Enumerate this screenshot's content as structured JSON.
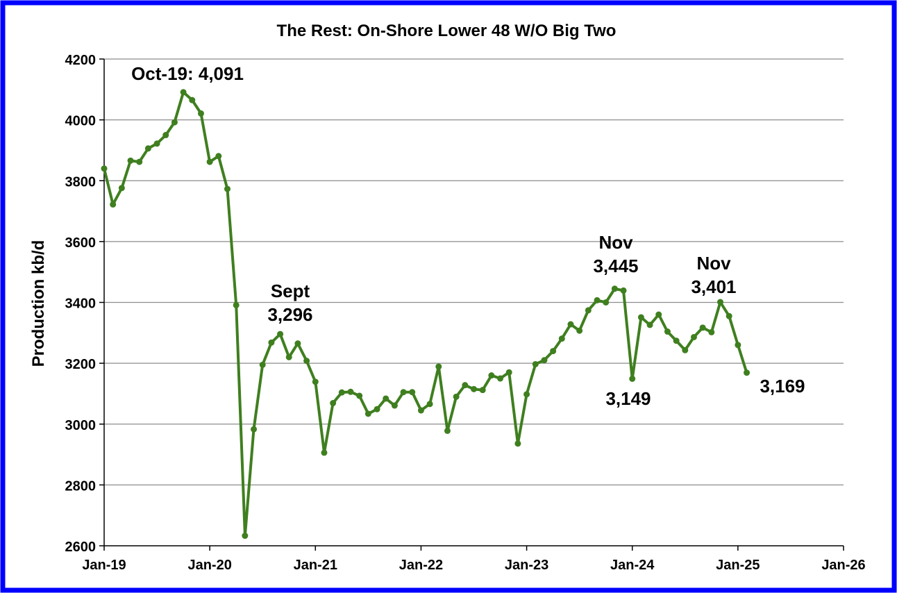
{
  "chart_data": {
    "type": "line",
    "title": "The Rest: On-Shore Lower 48 W/O Big Two",
    "xlabel": "",
    "ylabel": "Production kb/d",
    "ylim": [
      2600,
      4200
    ],
    "yticks": [
      2600,
      2800,
      3000,
      3200,
      3400,
      3600,
      3800,
      4000,
      4200
    ],
    "ytick_labels": [
      "2600",
      "2800",
      "3000",
      "3200",
      "3400",
      "3600",
      "3800",
      "4000",
      "4200"
    ],
    "xlim": [
      "2019-01",
      "2026-01"
    ],
    "xtick_labels": [
      "Jan-19",
      "Jan-20",
      "Jan-21",
      "Jan-22",
      "Jan-23",
      "Jan-24",
      "Jan-25",
      "Jan-26"
    ],
    "grid": "horizontal",
    "legend": "none",
    "line_color": "#3f7f1f",
    "border_color": "#0000ff",
    "series": [
      {
        "start": "2019-01",
        "frequency": "monthly",
        "values": [
          3840,
          3722,
          3776,
          3866,
          3862,
          3906,
          3922,
          3950,
          3992,
          4091,
          4065,
          4021,
          3862,
          3881,
          3773,
          3391,
          2633,
          2983,
          3195,
          3268,
          3296,
          3220,
          3265,
          3208,
          3139,
          2906,
          3069,
          3104,
          3106,
          3093,
          3034,
          3049,
          3084,
          3061,
          3105,
          3105,
          3045,
          3066,
          3189,
          2978,
          3090,
          3128,
          3115,
          3112,
          3160,
          3150,
          3170,
          2936,
          3098,
          3197,
          3210,
          3240,
          3281,
          3328,
          3307,
          3374,
          3407,
          3400,
          3445,
          3439,
          3149,
          3351,
          3326,
          3360,
          3304,
          3274,
          3243,
          3286,
          3317,
          3302,
          3401,
          3355,
          3260,
          3169
        ]
      }
    ],
    "annotations": [
      {
        "lines": [
          "Oct-19: 4,091"
        ]
      },
      {
        "lines": [
          "Sept",
          "3,296"
        ]
      },
      {
        "lines": [
          "Nov",
          "3,445"
        ]
      },
      {
        "lines": [
          "3,149"
        ]
      },
      {
        "lines": [
          "Nov",
          "3,401"
        ]
      },
      {
        "lines": [
          "3,169"
        ]
      }
    ]
  }
}
